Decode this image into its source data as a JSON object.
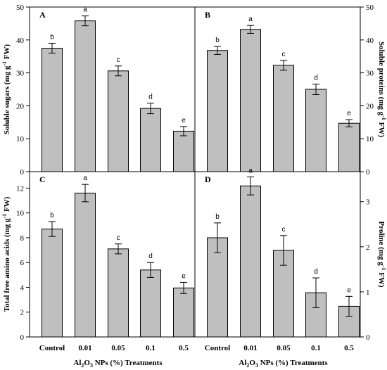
{
  "chart_data": [
    {
      "type": "bar",
      "panel_label": "A",
      "categories": [
        "Control",
        "0.01",
        "0.05",
        "0.1",
        "0.5"
      ],
      "values": [
        37.5,
        45.8,
        30.6,
        19.2,
        12.3
      ],
      "errors": [
        1.5,
        1.5,
        1.5,
        1.6,
        1.4
      ],
      "letters": [
        "b",
        "a",
        "c",
        "d",
        "e"
      ],
      "ylabel": "Soluble sugars (mg g⁻¹ FW)",
      "ylim": [
        0,
        50
      ],
      "yticks": [
        0,
        10,
        20,
        30,
        40,
        50
      ],
      "bar_color": "#bfbfbf"
    },
    {
      "type": "bar",
      "panel_label": "B",
      "categories": [
        "Control",
        "0.01",
        "0.05",
        "0.1",
        "0.5"
      ],
      "values": [
        36.8,
        43.2,
        32.3,
        25.0,
        14.7
      ],
      "errors": [
        1.2,
        1.2,
        1.5,
        1.6,
        1.1
      ],
      "letters": [
        "b",
        "a",
        "c",
        "d",
        "e"
      ],
      "ylabel": "Soluble proteins (mg g⁻¹ FW)",
      "ylim": [
        0,
        50
      ],
      "yticks": [
        0,
        10,
        20,
        30,
        40,
        50
      ],
      "bar_color": "#bfbfbf"
    },
    {
      "type": "bar",
      "panel_label": "C",
      "categories": [
        "Control",
        "0.01",
        "0.05",
        "0.1",
        "0.5"
      ],
      "values": [
        8.7,
        11.6,
        7.1,
        5.4,
        3.95
      ],
      "errors": [
        0.6,
        0.7,
        0.4,
        0.6,
        0.45
      ],
      "letters": [
        "b",
        "a",
        "c",
        "d",
        "e"
      ],
      "ylabel": "Total free amino acids (mg g⁻¹ FW)",
      "ylim": [
        0,
        13.33
      ],
      "yticks": [
        0,
        2,
        4,
        6,
        8,
        10,
        12
      ],
      "xlabel": "Al₂O₃ NPs (%) Treatments",
      "bar_color": "#bfbfbf"
    },
    {
      "type": "bar",
      "panel_label": "D",
      "categories": [
        "Control",
        "0.01",
        "0.05",
        "0.1",
        "0.5"
      ],
      "values": [
        2.2,
        3.35,
        1.92,
        0.98,
        0.68
      ],
      "errors": [
        0.33,
        0.2,
        0.33,
        0.33,
        0.22
      ],
      "letters": [
        "b",
        "a",
        "c",
        "d",
        "e"
      ],
      "ylabel": "Proline (mg g⁻¹ FW)",
      "ylim": [
        0,
        3.667
      ],
      "yticks": [
        0,
        1,
        2,
        3
      ],
      "xlabel": "Al₂O₃ NPs (%) Treatments",
      "bar_color": "#bfbfbf"
    }
  ]
}
